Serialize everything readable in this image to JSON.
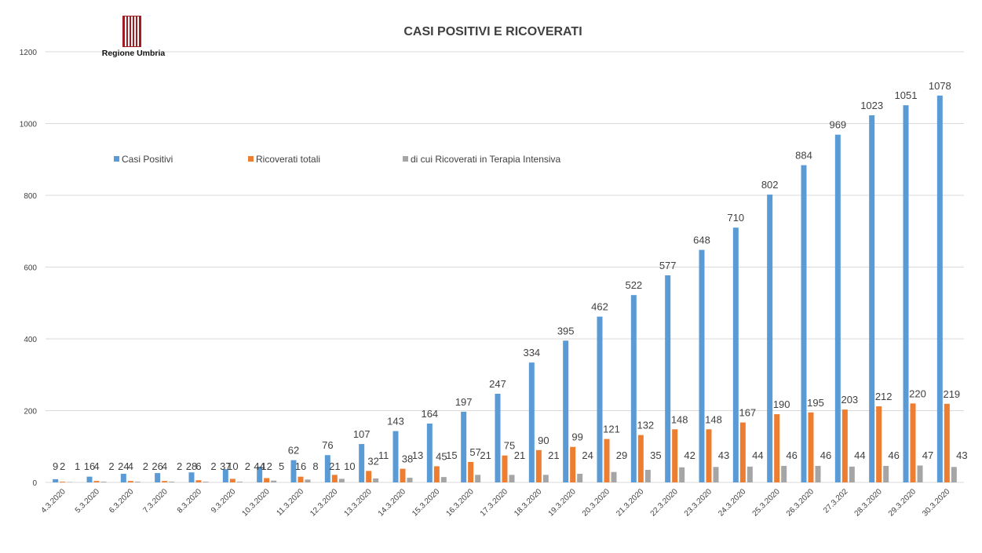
{
  "logo": {
    "text": "Regione Umbria"
  },
  "colors": {
    "series": [
      "#5b9bd5",
      "#ed7d31",
      "#a5a5a5"
    ],
    "grid": "#d9d9d9",
    "axis_text": "#404040"
  },
  "chart_data": {
    "type": "bar",
    "title": "CASI POSITIVI E RICOVERATI",
    "xlabel": "",
    "ylabel": "",
    "ylim": [
      0,
      1200
    ],
    "yticks": [
      0,
      200,
      400,
      600,
      800,
      1000,
      1200
    ],
    "grid": true,
    "legend_position": "top-left",
    "categories": [
      "4.3.2020",
      "5.3.2020",
      "6.3.2020",
      "7.3.2020",
      "8.3.2020",
      "9.3.2020",
      "10.3.2020",
      "11.3.2020",
      "12.3.2020",
      "13.3.2020",
      "14.3.2020",
      "15.3.2020",
      "16.3.2020",
      "17.3.2020",
      "18.3.2020",
      "19.3.2020",
      "20.3.2020",
      "21.3.2020",
      "22.3.2020",
      "23.3.2020",
      "24.3.2020",
      "25.3.2020",
      "26.3.2020",
      "27.3.202",
      "28.3.2020",
      "29.3.2020",
      "30.3.2020"
    ],
    "series": [
      {
        "name": "Casi Positivi",
        "values": [
          9,
          16,
          24,
          26,
          28,
          37,
          44,
          62,
          76,
          107,
          143,
          164,
          197,
          247,
          334,
          395,
          462,
          522,
          577,
          648,
          710,
          802,
          884,
          969,
          1023,
          1051,
          1078
        ]
      },
      {
        "name": "Ricoverati totali",
        "values": [
          2,
          4,
          4,
          4,
          6,
          10,
          12,
          16,
          21,
          32,
          38,
          45,
          57,
          75,
          90,
          99,
          121,
          132,
          148,
          148,
          167,
          190,
          195,
          203,
          212,
          220,
          219
        ]
      },
      {
        "name": "di cui Ricoverati in Terapia Intensiva",
        "values": [
          1,
          2,
          2,
          2,
          2,
          2,
          5,
          8,
          10,
          11,
          13,
          15,
          21,
          21,
          21,
          24,
          29,
          35,
          42,
          43,
          44,
          46,
          46,
          44,
          46,
          47,
          43
        ]
      }
    ]
  }
}
